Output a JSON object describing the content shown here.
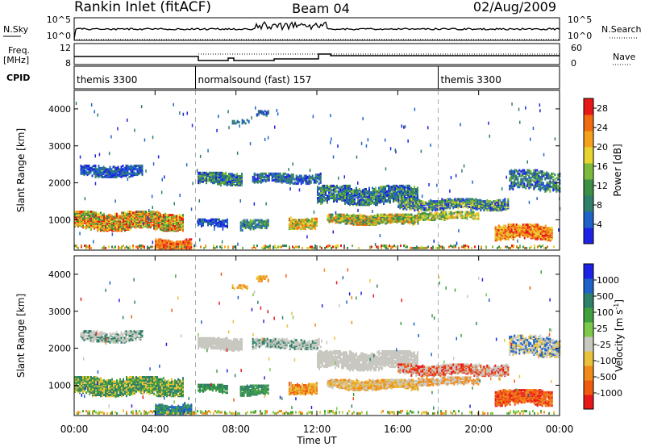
{
  "header": {
    "station": "Rankin Inlet (fitACF)",
    "beam": "Beam 04",
    "date": "02/Aug/2009"
  },
  "colors": {
    "power_scale": [
      "#1e22e6",
      "#1f63c9",
      "#2f7f6a",
      "#3c8f45",
      "#7cba3e",
      "#e6d52f",
      "#f4a21d",
      "#f06b12",
      "#e8181a"
    ],
    "velocity_scale": [
      "#1e22e6",
      "#1f63c9",
      "#2f7f6a",
      "#40a040",
      "#7cc84a",
      "#c8c8c0",
      "#e8c23a",
      "#f08a1a",
      "#f05a10",
      "#e8181a"
    ]
  },
  "chart_data": [
    {
      "type": "line",
      "panel": "nsky-search",
      "left_label": "N.Sky",
      "right_label": "N.Search",
      "left_ticks": [
        "10^5",
        "10^0"
      ],
      "right_ticks": [
        "10^5",
        "10^0"
      ]
    },
    {
      "type": "line",
      "panel": "frequency-nave",
      "left_label": "Freq.",
      "left_unit": "[MHz]",
      "right_label": "Nave",
      "left_ticks": [
        "12",
        "8"
      ],
      "right_ticks": [
        "60",
        "0"
      ]
    },
    {
      "type": "table",
      "panel": "cpid",
      "label": "CPID",
      "segments": [
        {
          "name": "themis 3300",
          "start_hour": 0
        },
        {
          "name": "normalsound (fast) 157",
          "start_hour": 6
        },
        {
          "name": "themis 3300",
          "start_hour": 18
        }
      ]
    },
    {
      "type": "heatmap",
      "panel": "power",
      "ylabel": "Slant Range [km]",
      "yticks": [
        1000,
        2000,
        3000,
        4000
      ],
      "ylim": [
        180,
        4500
      ],
      "colorbar_label": "Power [dB]",
      "colorbar_ticks": [
        4,
        8,
        12,
        16,
        20,
        24,
        28
      ],
      "colorbar_range": [
        0,
        30
      ]
    },
    {
      "type": "heatmap",
      "panel": "velocity",
      "ylabel": "Slant Range [km]",
      "yticks": [
        1000,
        2000,
        3000,
        4000
      ],
      "ylim": [
        180,
        4500
      ],
      "colorbar_label": "Velocity [m s",
      "colorbar_label_sup": "-1",
      "colorbar_label_end": "]",
      "colorbar_ticks": [
        "1000",
        "500",
        "100",
        "25",
        "-25",
        "-100",
        "-500",
        "-1000"
      ],
      "xlabel": "Time UT",
      "xticks": [
        "00:00",
        "04:00",
        "08:00",
        "12:00",
        "16:00",
        "20:00",
        "00:00"
      ]
    }
  ]
}
